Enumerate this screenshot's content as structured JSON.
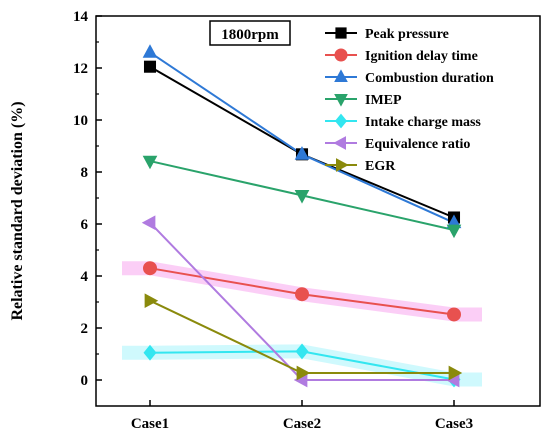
{
  "chart_data": {
    "type": "line",
    "annotation": "1800rpm",
    "title": "",
    "xlabel": "",
    "ylabel": "Relative standard deviation (%)",
    "categories": [
      "Case1",
      "Case2",
      "Case3"
    ],
    "ylim": [
      -1,
      14
    ],
    "yticks": [
      0,
      2,
      4,
      6,
      8,
      10,
      12,
      14
    ],
    "legend_position": "top-right",
    "grid": false,
    "series": [
      {
        "name": "Peak pressure",
        "color": "#000000",
        "marker": "square",
        "values": [
          12.05,
          8.68,
          6.25
        ],
        "band": false
      },
      {
        "name": "Ignition delay time",
        "color": "#e8514f",
        "marker": "circle",
        "values": [
          4.3,
          3.3,
          2.52
        ],
        "band": true,
        "band_color": "#f7a6ee"
      },
      {
        "name": "Combustion duration",
        "color": "#2e79d6",
        "marker": "triangle-up",
        "values": [
          12.6,
          8.68,
          6.05
        ],
        "band": false
      },
      {
        "name": "IMEP",
        "color": "#2aa36b",
        "marker": "triangle-down",
        "values": [
          8.42,
          7.1,
          5.77
        ],
        "band": false
      },
      {
        "name": "Intake charge mass",
        "color": "#33e6f0",
        "marker": "diamond",
        "values": [
          1.05,
          1.1,
          0.02
        ],
        "band": true,
        "band_color": "#a8f4fb"
      },
      {
        "name": "Equivalence ratio",
        "color": "#b07be0",
        "marker": "triangle-left",
        "values": [
          6.05,
          0.0,
          0.0
        ],
        "band": false
      },
      {
        "name": "EGR",
        "color": "#8a8a0c",
        "marker": "triangle-right",
        "values": [
          3.05,
          0.27,
          0.27
        ],
        "band": false
      }
    ]
  }
}
